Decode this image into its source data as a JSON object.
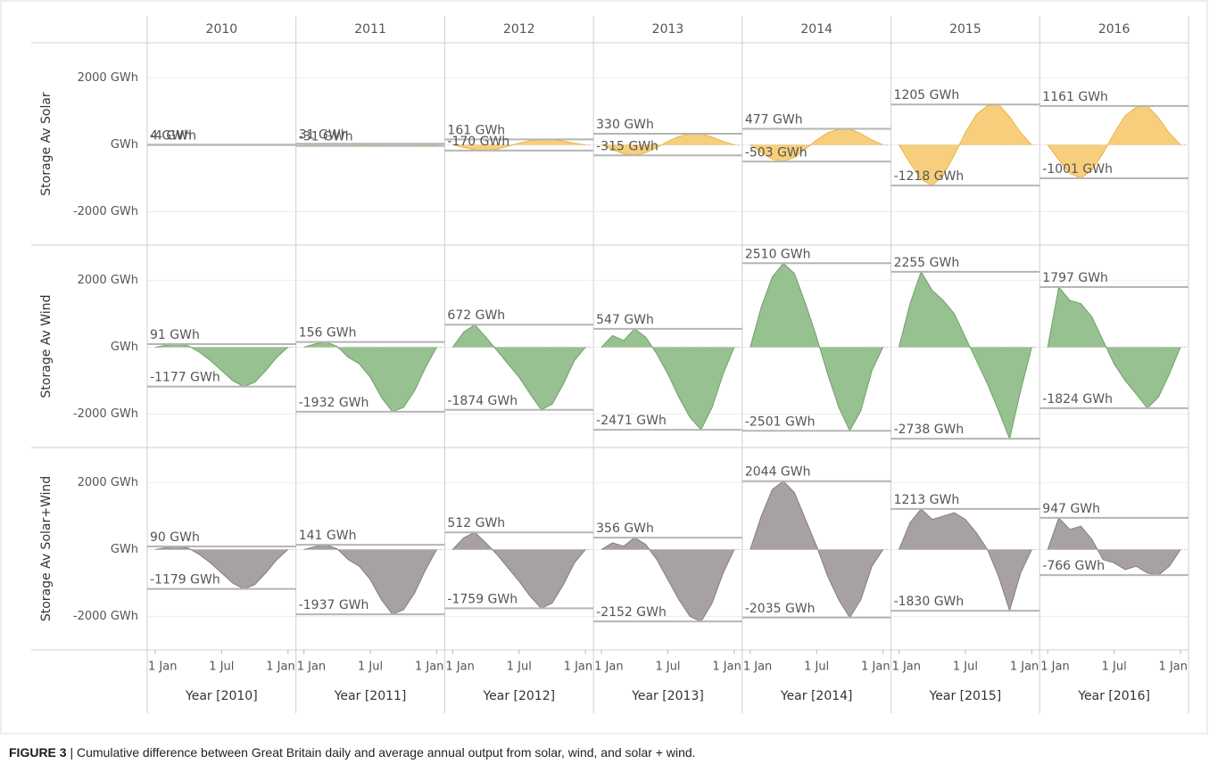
{
  "chart_data": {
    "type": "area",
    "columns": [
      "2010",
      "2011",
      "2012",
      "2013",
      "2014",
      "2015",
      "2016"
    ],
    "x_axis_titles": [
      "Year [2010]",
      "Year [2011]",
      "Year [2012]",
      "Year [2013]",
      "Year [2014]",
      "Year [2015]",
      "Year [2016]"
    ],
    "x": [
      0,
      1,
      2,
      3,
      4,
      5,
      6,
      7,
      8,
      9,
      10,
      11,
      12
    ],
    "xlim": [
      -0.4,
      12.4
    ],
    "xticks": [
      {
        "value": 0,
        "label": "1 Jan"
      },
      {
        "value": 6,
        "label": "1 Jul"
      },
      {
        "value": 12,
        "label": "1 Jan"
      }
    ],
    "ylim": [
      -3000,
      3050
    ],
    "yticks": [
      {
        "value": -2000,
        "label": "-2000 GWh"
      },
      {
        "value": 0,
        "label": "GWh"
      },
      {
        "value": 2000,
        "label": "2000 GWh"
      }
    ],
    "grid": true,
    "rows": [
      {
        "name": "Storage Av Solar",
        "color": "#f7cf7c",
        "line_color": "#e8b445",
        "cells": [
          {
            "values": [
              0,
              -2,
              -3,
              -4,
              -3,
              -1,
              1,
              3,
              4,
              4,
              3,
              1,
              0
            ],
            "ref_values": [
              4,
              -4
            ],
            "ref_labels": [
              "4 GWh",
              "-4 GWh"
            ]
          },
          {
            "values": [
              0,
              -14,
              -26,
              -31,
              -23,
              -8,
              9,
              23,
              30,
              31,
              22,
              9,
              0
            ],
            "ref_values": [
              31,
              -31
            ],
            "ref_labels": [
              "31 GWh",
              "-31 GWh"
            ]
          },
          {
            "values": [
              0,
              -77,
              -145,
              -170,
              -128,
              -43,
              48,
              121,
              156,
              161,
              113,
              48,
              0
            ],
            "ref_values": [
              161,
              -170
            ],
            "ref_labels": [
              "161 GWh",
              "-170 GWh"
            ]
          },
          {
            "values": [
              0,
              -142,
              -268,
              -315,
              -236,
              -79,
              99,
              248,
              320,
              330,
              231,
              99,
              0
            ],
            "ref_values": [
              330,
              -315
            ],
            "ref_labels": [
              "330 GWh",
              "-315 GWh"
            ]
          },
          {
            "values": [
              0,
              -226,
              -428,
              -503,
              -377,
              -126,
              143,
              358,
              463,
              477,
              334,
              143,
              0
            ],
            "ref_values": [
              477,
              -503
            ],
            "ref_labels": [
              "477 GWh",
              "-503 GWh"
            ]
          },
          {
            "values": [
              0,
              -548,
              -1035,
              -1218,
              -914,
              -305,
              362,
              904,
              1169,
              1205,
              844,
              362,
              0
            ],
            "ref_values": [
              1205,
              -1218
            ],
            "ref_labels": [
              "1205 GWh",
              "-1218 GWh"
            ]
          },
          {
            "values": [
              0,
              -450,
              -851,
              -1001,
              -751,
              -250,
              348,
              871,
              1126,
              1161,
              813,
              348,
              0
            ],
            "ref_values": [
              1161,
              -1001
            ],
            "ref_labels": [
              "1161 GWh",
              "-1001 GWh"
            ]
          }
        ]
      },
      {
        "name": "Storage Av Wind",
        "color": "#97c190",
        "line_color": "#6f9f69",
        "cells": [
          {
            "values": [
              0,
              60,
              91,
              40,
              -150,
              -400,
              -700,
              -1000,
              -1177,
              -1050,
              -700,
              -300,
              0
            ],
            "ref_values": [
              91,
              -1177
            ],
            "ref_labels": [
              "91 GWh",
              "-1177 GWh"
            ]
          },
          {
            "values": [
              0,
              100,
              156,
              20,
              -300,
              -500,
              -900,
              -1500,
              -1932,
              -1800,
              -1300,
              -600,
              0
            ],
            "ref_values": [
              156,
              -1932
            ],
            "ref_labels": [
              "156 GWh",
              "-1932 GWh"
            ]
          },
          {
            "values": [
              0,
              450,
              672,
              300,
              -100,
              -500,
              -900,
              -1400,
              -1874,
              -1700,
              -1100,
              -400,
              0
            ],
            "ref_values": [
              672,
              -1874
            ],
            "ref_labels": [
              "672 GWh",
              "-1874 GWh"
            ]
          },
          {
            "values": [
              0,
              350,
              200,
              547,
              300,
              -200,
              -800,
              -1500,
              -2100,
              -2471,
              -1800,
              -800,
              0
            ],
            "ref_values": [
              547,
              -2471
            ],
            "ref_labels": [
              "547 GWh",
              "-2471 GWh"
            ]
          },
          {
            "values": [
              0,
              1200,
              2100,
              2510,
              2200,
              1300,
              300,
              -800,
              -1800,
              -2501,
              -1900,
              -700,
              0
            ],
            "ref_values": [
              2510,
              -2501
            ],
            "ref_labels": [
              "2510 GWh",
              "-2501 GWh"
            ]
          },
          {
            "values": [
              0,
              1300,
              2255,
              1700,
              1400,
              1000,
              300,
              -400,
              -1100,
              -1900,
              -2738,
              -1300,
              0
            ],
            "ref_values": [
              2255,
              -2738
            ],
            "ref_labels": [
              "2255 GWh",
              "-2738 GWh"
            ]
          },
          {
            "values": [
              0,
              1797,
              1400,
              1300,
              900,
              200,
              -500,
              -1000,
              -1400,
              -1824,
              -1500,
              -800,
              0
            ],
            "ref_values": [
              1797,
              -1824
            ],
            "ref_labels": [
              "1797 GWh",
              "-1824 GWh"
            ]
          }
        ]
      },
      {
        "name": "Storage Av Solar+Wind",
        "color": "#a8a1a1",
        "line_color": "#857d7d",
        "cells": [
          {
            "values": [
              0,
              60,
              90,
              40,
              -150,
              -400,
              -700,
              -1000,
              -1179,
              -1050,
              -700,
              -300,
              0
            ],
            "ref_values": [
              90,
              -1179
            ],
            "ref_labels": [
              "90 GWh",
              "-1179 GWh"
            ]
          },
          {
            "values": [
              0,
              90,
              141,
              20,
              -300,
              -500,
              -900,
              -1500,
              -1937,
              -1800,
              -1300,
              -600,
              0
            ],
            "ref_values": [
              141,
              -1937
            ],
            "ref_labels": [
              "141 GWh",
              "-1937 GWh"
            ]
          },
          {
            "values": [
              0,
              350,
              512,
              200,
              -150,
              -550,
              -950,
              -1400,
              -1759,
              -1600,
              -1050,
              -400,
              0
            ],
            "ref_values": [
              512,
              -1759
            ],
            "ref_labels": [
              "512 GWh",
              "-1759 GWh"
            ]
          },
          {
            "values": [
              0,
              200,
              100,
              356,
              150,
              -300,
              -900,
              -1500,
              -2000,
              -2152,
              -1600,
              -700,
              0
            ],
            "ref_values": [
              356,
              -2152
            ],
            "ref_labels": [
              "356 GWh",
              "-2152 GWh"
            ]
          },
          {
            "values": [
              0,
              1000,
              1800,
              2044,
              1700,
              900,
              100,
              -800,
              -1500,
              -2035,
              -1500,
              -500,
              0
            ],
            "ref_values": [
              2044,
              -2035
            ],
            "ref_labels": [
              "2044 GWh",
              "-2035 GWh"
            ]
          },
          {
            "values": [
              0,
              800,
              1213,
              900,
              1000,
              1100,
              900,
              500,
              0,
              -800,
              -1830,
              -700,
              0
            ],
            "ref_values": [
              1213,
              -1830
            ],
            "ref_labels": [
              "1213 GWh",
              "-1830 GWh"
            ]
          },
          {
            "values": [
              0,
              947,
              600,
              700,
              300,
              -300,
              -400,
              -600,
              -500,
              -700,
              -766,
              -500,
              0
            ],
            "ref_values": [
              947,
              -766
            ],
            "ref_labels": [
              "947 GWh",
              "-766 GWh"
            ]
          }
        ]
      }
    ]
  },
  "caption": {
    "label": "FIGURE 3",
    "text": " | Cumulative difference between Great Britain daily and average annual output from solar, wind, and solar + wind."
  }
}
